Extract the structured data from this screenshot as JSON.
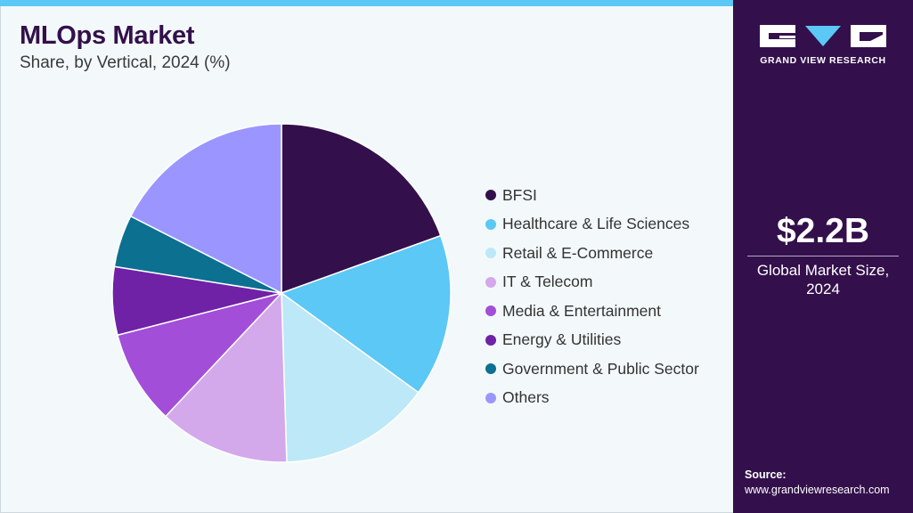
{
  "header": {
    "title": "MLOps Market",
    "subtitle": "Share, by Vertical, 2024 (%)"
  },
  "chart_data": {
    "type": "pie",
    "title": "MLOps Market",
    "subtitle": "Share, by Vertical, 2024 (%)",
    "categories": [
      "BFSI",
      "Healthcare & Life Sciences",
      "Retail & E-Commerce",
      "IT & Telecom",
      "Media & Entertainment",
      "Energy & Utilities",
      "Government & Public Sector",
      "Others"
    ],
    "values": [
      19.5,
      15.5,
      14.5,
      12.5,
      9.0,
      6.5,
      5.0,
      17.5
    ],
    "colors": [
      "#33104b",
      "#5bc8f5",
      "#bde8f8",
      "#d3a9ec",
      "#a34ed8",
      "#6f22a6",
      "#0c7091",
      "#9b96ff"
    ],
    "start_angle": "12 o'clock",
    "direction": "clockwise",
    "legend_position": "right"
  },
  "side_panel": {
    "logo_text": "GRAND VIEW RESEARCH",
    "market_value": "$2.2B",
    "market_label_line1": "Global Market Size,",
    "market_label_line2": "2024",
    "source_label": "Source:",
    "source_url": "www.grandviewresearch.com"
  },
  "colors": {
    "panel_bg": "#33104b",
    "accent": "#5bc8f5",
    "page_bg": "#f3f9fb"
  }
}
